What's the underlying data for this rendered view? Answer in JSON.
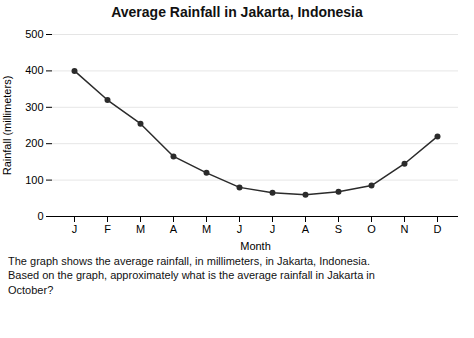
{
  "chart_data": {
    "type": "line",
    "title": "Average Rainfall in Jakarta, Indonesia",
    "xlabel": "Month",
    "ylabel": "Rainfall (millimeters)",
    "categories": [
      "J",
      "F",
      "M",
      "A",
      "M",
      "J",
      "J",
      "A",
      "S",
      "O",
      "N",
      "D"
    ],
    "values": [
      400,
      320,
      255,
      165,
      120,
      80,
      65,
      60,
      68,
      85,
      145,
      220
    ],
    "color": "#2b2b2b",
    "marker": "circle",
    "ylim": [
      0,
      500
    ],
    "yticks": [
      0,
      100,
      200,
      300,
      400,
      500
    ],
    "grid": true,
    "caption": [
      "The graph shows the average rainfall, in millimeters, in Jakarta, Indonesia.",
      "Based on the graph, approximately what is the average rainfall in Jakarta in",
      "October?"
    ]
  }
}
